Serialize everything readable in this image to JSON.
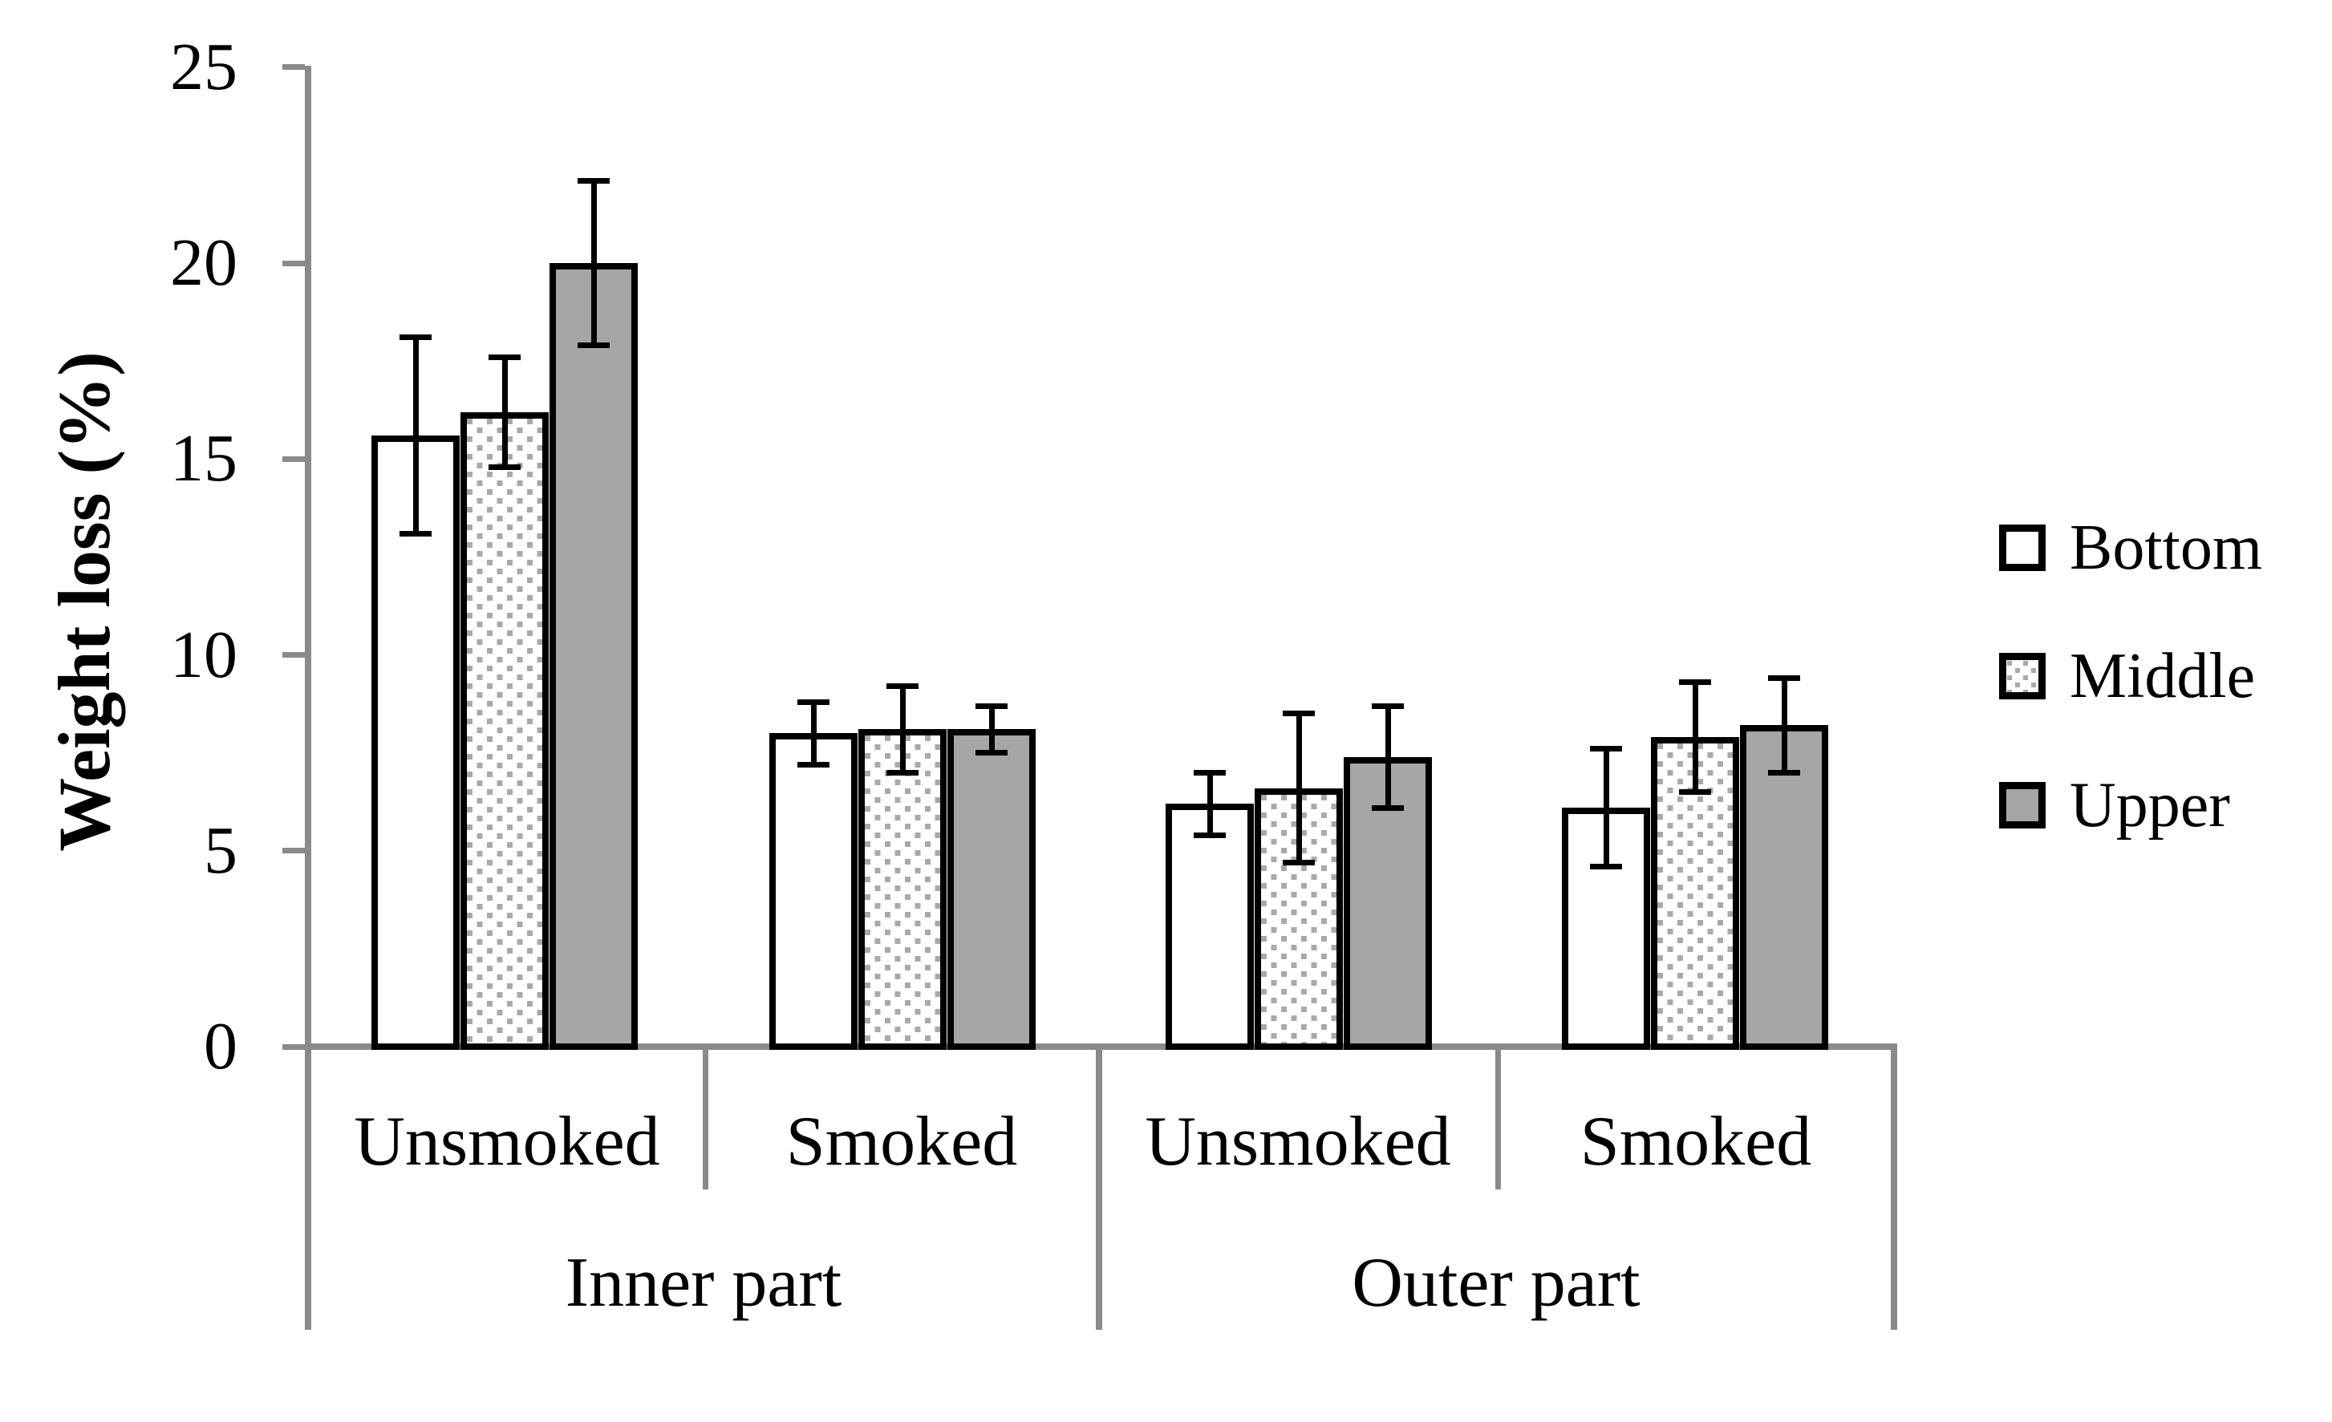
{
  "chart_data": {
    "type": "bar",
    "title": "",
    "xlabel": "",
    "ylabel": "Weight loss (%)",
    "ylim": [
      0,
      25
    ],
    "yticks": [
      0,
      5,
      10,
      15,
      20,
      25
    ],
    "grid": false,
    "legend_position": "right",
    "error_bars": true,
    "categories": [
      "Unsmoked",
      "Smoked",
      "Unsmoked",
      "Smoked"
    ],
    "category_groups": [
      {
        "label": "Inner part",
        "categories": [
          "Unsmoked",
          "Smoked"
        ]
      },
      {
        "label": "Outer part",
        "categories": [
          "Unsmoked",
          "Smoked"
        ]
      }
    ],
    "series": [
      {
        "name": "Bottom",
        "fill": "white",
        "values": [
          15.6,
          8.0,
          6.2,
          6.1
        ],
        "errors": [
          2.5,
          0.8,
          0.8,
          1.5
        ]
      },
      {
        "name": "Middle",
        "fill": "dotted",
        "values": [
          16.2,
          8.1,
          6.6,
          7.9
        ],
        "errors": [
          1.4,
          1.1,
          1.9,
          1.4
        ]
      },
      {
        "name": "Upper",
        "fill": "gray",
        "values": [
          20.0,
          8.1,
          7.4,
          8.2
        ],
        "errors": [
          2.1,
          0.6,
          1.3,
          1.2
        ]
      }
    ]
  },
  "colors": {
    "bar_gray": "#a6a6a6",
    "pattern_dot": "#a9a9a9",
    "axis_gray": "#8a8a8a",
    "bar_border": "#000000",
    "text": "#000000",
    "background": "#ffffff"
  }
}
